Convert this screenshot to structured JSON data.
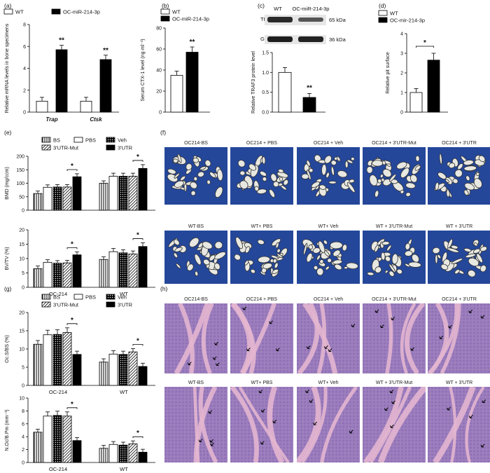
{
  "panels": {
    "a": {
      "letter": "(a)"
    },
    "b": {
      "letter": "(b)"
    },
    "c": {
      "letter": "(c)"
    },
    "d": {
      "letter": "(d)"
    },
    "e": {
      "letter": "(e)"
    },
    "f": {
      "letter": "(f)"
    },
    "g": {
      "letter": "(g)"
    },
    "h": {
      "letter": "(h)"
    }
  },
  "legend_ab": {
    "wt": "WT",
    "oc": "OC-miR-214-3p"
  },
  "legend_d": {
    "wt": "WT",
    "oc": "OC-mir-214-3p"
  },
  "legend_eg": {
    "bs": "BS",
    "pbs": "PBS",
    "veh": "Veh",
    "mut": "3'UTR-Mut",
    "utr": "3'UTR"
  },
  "western_c": {
    "header_wt": "WT",
    "header_oc": "OC-miR-214-3p",
    "row1": "TRAF3",
    "row1_kda": "65 kDa",
    "row2": "GAPDH",
    "row2_kda": "36 kDa"
  },
  "panel_f": {
    "row1": [
      "OC214-BS",
      "OC214 + PBS",
      "OC214 + Veh",
      "OC214 + 3'UTR-Mut",
      "OC214 + 3'UTR"
    ],
    "row2": [
      "WT-BS",
      "WT+ PBS",
      "WT+ Veh",
      "WT + 3'UTR-Mut",
      "WT + 3'UTR"
    ]
  },
  "panel_h": {
    "row1": [
      "OC214-BS",
      "OC214 + PBS",
      "OC214 + Veh",
      "OC214 + 3'UTR-Mut",
      "OC214 + 3'UTR"
    ],
    "row2": [
      "WT-BS",
      "WT+ PBS",
      "WT+ Veh",
      "WT + 3'UTR-Mut",
      "WT + 3'UTR"
    ]
  },
  "colors": {
    "ct_background": "#24479a",
    "bar_black": "#000000",
    "bar_white": "#ffffff",
    "he_pink": "#d9a3c4",
    "he_purple": "#7a5aa8"
  },
  "chart_data": [
    {
      "id": "a",
      "type": "bar",
      "ylabel": "Relative mRNA levels in bone specimens",
      "categories": [
        "Trap",
        "Ctsk"
      ],
      "ylim": [
        0,
        8
      ],
      "yticks": [
        0,
        2,
        4,
        6,
        8
      ],
      "series": [
        {
          "name": "WT",
          "values": [
            1.0,
            1.0
          ]
        },
        {
          "name": "OC-miR-214-3p",
          "values": [
            5.7,
            4.8
          ]
        }
      ],
      "annotations": [
        "**",
        "**"
      ]
    },
    {
      "id": "b",
      "type": "bar",
      "ylabel": "Serum CTX-1 level (ng·ml⁻¹)",
      "categories": [
        "WT",
        "OC-miR-214-3p"
      ],
      "ylim": [
        0,
        80
      ],
      "yticks": [
        0,
        20,
        40,
        60,
        80
      ],
      "values": [
        35,
        57
      ],
      "annotations": [
        "**"
      ]
    },
    {
      "id": "c",
      "type": "bar",
      "ylabel": "Relative TRAF3 protein level",
      "categories": [
        "WT",
        "OC-miR-214-3p"
      ],
      "ylim": [
        0,
        1.5
      ],
      "yticks": [
        0.0,
        0.5,
        1.0,
        1.5
      ],
      "values": [
        1.0,
        0.37
      ],
      "annotations": [
        "**"
      ]
    },
    {
      "id": "d",
      "type": "bar",
      "ylabel": "Relative pit surface",
      "categories": [
        "WT",
        "OC-mir-214-3p"
      ],
      "ylim": [
        0,
        4
      ],
      "yticks": [
        0,
        1,
        2,
        3,
        4
      ],
      "values": [
        1.0,
        2.65
      ],
      "annotations": [
        "*"
      ]
    },
    {
      "id": "e1",
      "type": "bar",
      "ylabel": "BMD (mg/ccm)",
      "categories": [
        "OC-214",
        "WT"
      ],
      "ylim": [
        0,
        200
      ],
      "yticks": [
        0,
        50,
        100,
        150,
        200
      ],
      "series": [
        {
          "name": "BS",
          "values": [
            62,
            100
          ]
        },
        {
          "name": "PBS",
          "values": [
            85,
            126
          ]
        },
        {
          "name": "Veh",
          "values": [
            86,
            126
          ]
        },
        {
          "name": "3'UTR-Mut",
          "values": [
            86,
            126
          ]
        },
        {
          "name": "3'UTR",
          "values": [
            124,
            155
          ]
        }
      ],
      "annotations": [
        "*",
        "*"
      ]
    },
    {
      "id": "e2",
      "type": "bar",
      "ylabel": "BV/TV (%)",
      "categories": [
        "OC-214",
        "WT"
      ],
      "ylim": [
        0,
        20
      ],
      "yticks": [
        0,
        5,
        10,
        15,
        20
      ],
      "series": [
        {
          "name": "BS",
          "values": [
            6.5,
            9.7
          ]
        },
        {
          "name": "PBS",
          "values": [
            8.7,
            12.4
          ]
        },
        {
          "name": "Veh",
          "values": [
            8.4,
            12.0
          ]
        },
        {
          "name": "3'UTR-Mut",
          "values": [
            8.5,
            11.6
          ]
        },
        {
          "name": "3'UTR",
          "values": [
            11.3,
            14.2
          ]
        }
      ],
      "annotations": [
        "*",
        "*"
      ]
    },
    {
      "id": "g1",
      "type": "bar",
      "ylabel": "Oc.S/BS (%)",
      "categories": [
        "OC-214",
        "WT"
      ],
      "ylim": [
        0,
        20
      ],
      "yticks": [
        0,
        5,
        10,
        15,
        20
      ],
      "series": [
        {
          "name": "BS",
          "values": [
            11.3,
            6.4
          ]
        },
        {
          "name": "PBS",
          "values": [
            13.9,
            8.6
          ]
        },
        {
          "name": "Veh",
          "values": [
            14.0,
            8.5
          ]
        },
        {
          "name": "3'UTR-Mut",
          "values": [
            14.5,
            9.2
          ]
        },
        {
          "name": "3'UTR",
          "values": [
            8.5,
            5.2
          ]
        }
      ],
      "annotations": [
        "*",
        "*"
      ]
    },
    {
      "id": "g2",
      "type": "bar",
      "ylabel": "N.Oc/B.Pm (mm⁻¹)",
      "categories": [
        "OC-214",
        "WT"
      ],
      "ylim": [
        0,
        10
      ],
      "yticks": [
        0,
        2,
        4,
        6,
        8,
        10
      ],
      "series": [
        {
          "name": "BS",
          "values": [
            4.7,
            2.2
          ]
        },
        {
          "name": "PBS",
          "values": [
            7.2,
            2.8
          ]
        },
        {
          "name": "Veh",
          "values": [
            7.3,
            2.7
          ]
        },
        {
          "name": "3'UTR-Mut",
          "values": [
            7.2,
            2.9
          ]
        },
        {
          "name": "3'UTR",
          "values": [
            3.4,
            1.6
          ]
        }
      ],
      "annotations": [
        "*",
        "*"
      ]
    }
  ]
}
